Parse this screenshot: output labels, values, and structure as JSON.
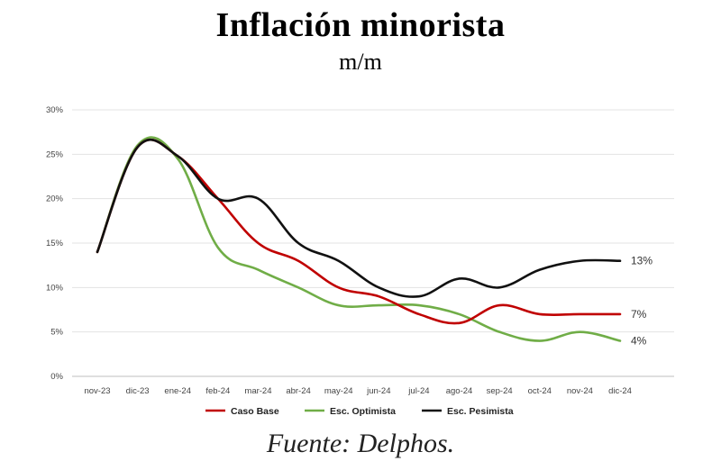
{
  "chart_data": {
    "type": "line",
    "title": "Inflación minorista",
    "subtitle": "m/m",
    "source": "Fuente: Delphos.",
    "x": [
      "nov-23",
      "dic-23",
      "ene-24",
      "feb-24",
      "mar-24",
      "abr-24",
      "may-24",
      "jun-24",
      "jul-24",
      "ago-24",
      "sep-24",
      "oct-24",
      "nov-24",
      "dic-24"
    ],
    "ylim": [
      0,
      30
    ],
    "yticks": [
      0,
      5,
      10,
      15,
      20,
      25,
      30
    ],
    "ytick_labels": [
      "0%",
      "5%",
      "10%",
      "15%",
      "20%",
      "25%",
      "30%"
    ],
    "grid": true,
    "legend_position": "bottom",
    "series": [
      {
        "name": "Caso Base",
        "color": "#c00000",
        "values": [
          14,
          25.8,
          24.8,
          20,
          15,
          13,
          10,
          9,
          7,
          6,
          8,
          7,
          7,
          7
        ],
        "end_label": "7%"
      },
      {
        "name": "Esc. Optimista",
        "color": "#70ad47",
        "values": [
          14,
          26,
          24.5,
          14.5,
          12,
          10,
          8,
          8,
          8,
          7,
          5,
          4,
          5,
          4
        ],
        "end_label": "4%"
      },
      {
        "name": "Esc. Pesimista",
        "color": "#111111",
        "values": [
          14,
          25.8,
          24.8,
          20,
          20,
          15,
          13,
          10,
          9,
          11,
          10,
          12,
          13,
          13
        ],
        "end_label": "13%"
      }
    ]
  }
}
